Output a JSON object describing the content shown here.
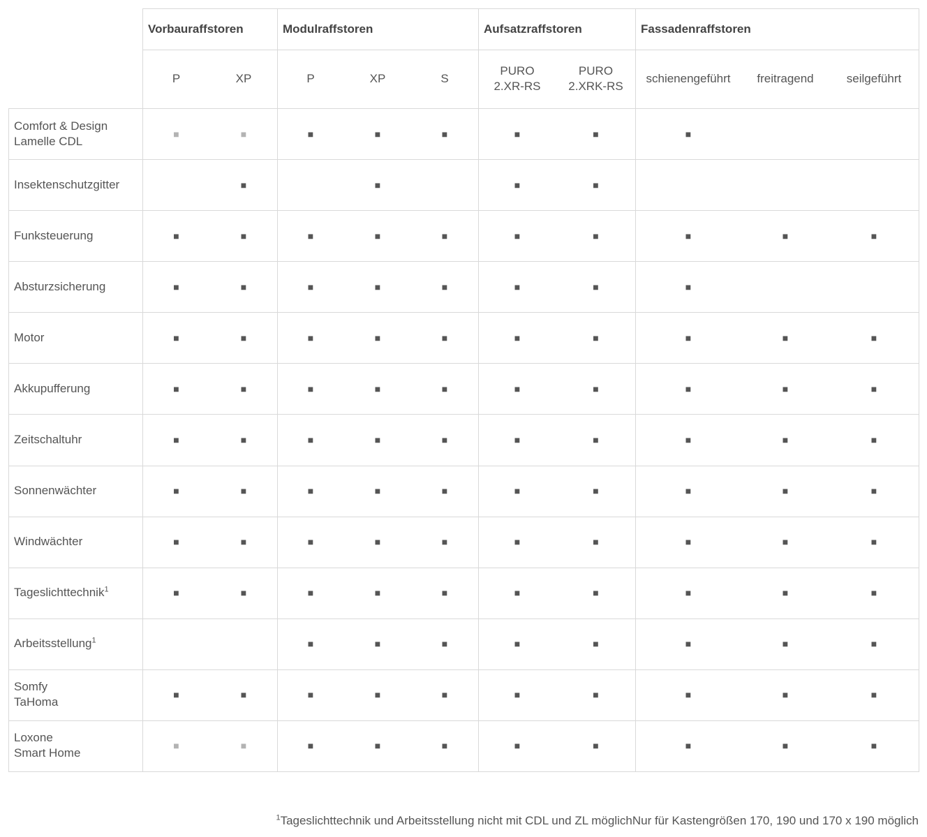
{
  "table": {
    "mark_color": "#555555",
    "groups": [
      {
        "label": "Vorbauraffstoren",
        "columns": [
          "P",
          "XP"
        ]
      },
      {
        "label": "Modulraffstoren",
        "columns": [
          "P",
          "XP",
          "S"
        ]
      },
      {
        "label": "Aufsatzraffstoren",
        "columns": [
          "PURO\n2.XR-RS",
          "PURO\n2.XRK-RS"
        ]
      },
      {
        "label": "Fassadenraffstoren",
        "columns": [
          "schienengeführt",
          "freitragend",
          "seilgeführt"
        ]
      }
    ],
    "rows": [
      {
        "label": "Comfort & Design\nLamelle CDL",
        "cells": [
          {
            "text": "■",
            "color": "#b3b3b3"
          },
          {
            "text": "■",
            "color": "#b3b3b3"
          },
          "■",
          "■",
          "■",
          "■",
          "■",
          "■",
          null,
          null
        ]
      },
      {
        "label": "Insektenschutzgitter",
        "cells": [
          null,
          "■",
          null,
          "■",
          null,
          "■",
          "■",
          null,
          null,
          null
        ]
      },
      {
        "label": "Funksteuerung",
        "cells": [
          "■",
          "■",
          "■",
          "■",
          "■",
          "■",
          "■",
          "■",
          "■",
          "■"
        ]
      },
      {
        "label": "Absturzsicherung",
        "cells": [
          "■",
          "■",
          "■",
          "■",
          "■",
          "■",
          "■",
          "■",
          null,
          null
        ]
      },
      {
        "label": "Motor",
        "cells": [
          "■",
          "■",
          "■",
          "■",
          "■",
          "■",
          "■",
          "■",
          "■",
          "■"
        ]
      },
      {
        "label": "Akkupufferung",
        "cells": [
          "■",
          "■",
          "■",
          "■",
          "■",
          "■",
          "■",
          "■",
          "■",
          "■"
        ]
      },
      {
        "label": "Zeitschaltuhr",
        "cells": [
          "■",
          "■",
          "■",
          "■",
          "■",
          "■",
          "■",
          "■",
          "■",
          "■"
        ]
      },
      {
        "label": "Sonnenwächter",
        "cells": [
          "■",
          "■",
          "■",
          "■",
          "■",
          "■",
          "■",
          "■",
          "■",
          "■"
        ]
      },
      {
        "label": "Windwächter",
        "cells": [
          "■",
          "■",
          "■",
          "■",
          "■",
          "■",
          "■",
          "■",
          "■",
          "■"
        ]
      },
      {
        "label": "Tageslichttechnik",
        "note": "1",
        "cells": [
          "■",
          "■",
          "■",
          "■",
          "■",
          "■",
          "■",
          "■",
          "■",
          "■"
        ]
      },
      {
        "label": "Arbeitsstellung",
        "note": "1",
        "cells": [
          null,
          null,
          "■",
          "■",
          "■",
          "■",
          "■",
          "■",
          "■",
          "■"
        ]
      },
      {
        "label": "Somfy\nTaHoma",
        "cells": [
          "■",
          "■",
          "■",
          "■",
          "■",
          "■",
          "■",
          "■",
          "■",
          "■"
        ]
      },
      {
        "label": "Loxone\nSmart Home",
        "cells": [
          {
            "text": "■",
            "color": "#b3b3b3"
          },
          {
            "text": "■",
            "color": "#b3b3b3"
          },
          "■",
          "■",
          "■",
          "■",
          "■",
          "■",
          "■",
          "■"
        ]
      }
    ]
  },
  "footnote": {
    "mark": "1",
    "text": "Tageslichttechnik und Arbeitsstellung nicht mit CDL und ZL möglichNur für Kastengrößen 170, 190 und 170 x 190 möglich"
  }
}
